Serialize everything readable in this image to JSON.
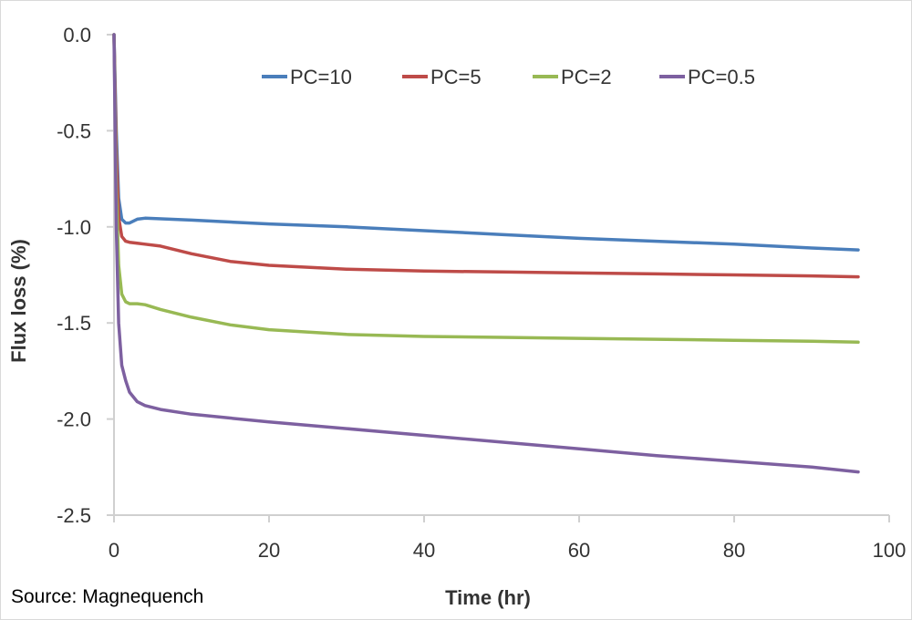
{
  "chart_data": {
    "type": "line",
    "xlabel": "Time (hr)",
    "ylabel": "Flux loss (%)",
    "xlim": [
      0,
      100
    ],
    "ylim": [
      -2.5,
      0
    ],
    "x_ticks": [
      "0",
      "20",
      "40",
      "60",
      "80",
      "100"
    ],
    "y_ticks": [
      "0.0",
      "-0.5",
      "-1.0",
      "-1.5",
      "-2.0",
      "-2.5"
    ],
    "grid": false,
    "legend_position": "top",
    "source": "Source: Magnequench",
    "series": [
      {
        "name": "PC=10",
        "color": "#4a7ebb",
        "points": [
          [
            0,
            0
          ],
          [
            0.3,
            -0.5
          ],
          [
            0.6,
            -0.85
          ],
          [
            1,
            -0.96
          ],
          [
            1.5,
            -0.98
          ],
          [
            2,
            -0.98
          ],
          [
            3,
            -0.96
          ],
          [
            4,
            -0.955
          ],
          [
            10,
            -0.965
          ],
          [
            20,
            -0.985
          ],
          [
            30,
            -1.0
          ],
          [
            40,
            -1.02
          ],
          [
            50,
            -1.04
          ],
          [
            60,
            -1.06
          ],
          [
            70,
            -1.075
          ],
          [
            80,
            -1.09
          ],
          [
            90,
            -1.11
          ],
          [
            96,
            -1.12
          ]
        ]
      },
      {
        "name": "PC=5",
        "color": "#be4b48",
        "points": [
          [
            0,
            0
          ],
          [
            0.3,
            -0.6
          ],
          [
            0.6,
            -0.95
          ],
          [
            1,
            -1.05
          ],
          [
            1.5,
            -1.075
          ],
          [
            2,
            -1.08
          ],
          [
            3,
            -1.085
          ],
          [
            4,
            -1.09
          ],
          [
            6,
            -1.1
          ],
          [
            10,
            -1.14
          ],
          [
            15,
            -1.18
          ],
          [
            20,
            -1.2
          ],
          [
            30,
            -1.22
          ],
          [
            40,
            -1.23
          ],
          [
            50,
            -1.235
          ],
          [
            60,
            -1.24
          ],
          [
            70,
            -1.245
          ],
          [
            80,
            -1.25
          ],
          [
            90,
            -1.255
          ],
          [
            96,
            -1.26
          ]
        ]
      },
      {
        "name": "PC=2",
        "color": "#98b954",
        "points": [
          [
            0,
            0
          ],
          [
            0.3,
            -0.8
          ],
          [
            0.6,
            -1.2
          ],
          [
            1,
            -1.35
          ],
          [
            1.5,
            -1.39
          ],
          [
            2,
            -1.4
          ],
          [
            3,
            -1.4
          ],
          [
            4,
            -1.405
          ],
          [
            6,
            -1.43
          ],
          [
            10,
            -1.47
          ],
          [
            15,
            -1.51
          ],
          [
            20,
            -1.535
          ],
          [
            30,
            -1.56
          ],
          [
            40,
            -1.57
          ],
          [
            50,
            -1.575
          ],
          [
            60,
            -1.58
          ],
          [
            70,
            -1.585
          ],
          [
            80,
            -1.59
          ],
          [
            90,
            -1.595
          ],
          [
            96,
            -1.6
          ]
        ]
      },
      {
        "name": "PC=0.5",
        "color": "#7d60a0",
        "points": [
          [
            0,
            0
          ],
          [
            0.3,
            -1.0
          ],
          [
            0.6,
            -1.5
          ],
          [
            1,
            -1.72
          ],
          [
            1.5,
            -1.8
          ],
          [
            2,
            -1.86
          ],
          [
            3,
            -1.91
          ],
          [
            4,
            -1.93
          ],
          [
            6,
            -1.95
          ],
          [
            10,
            -1.975
          ],
          [
            20,
            -2.015
          ],
          [
            30,
            -2.05
          ],
          [
            40,
            -2.085
          ],
          [
            50,
            -2.12
          ],
          [
            60,
            -2.155
          ],
          [
            70,
            -2.19
          ],
          [
            80,
            -2.22
          ],
          [
            90,
            -2.25
          ],
          [
            96,
            -2.275
          ]
        ]
      }
    ]
  }
}
